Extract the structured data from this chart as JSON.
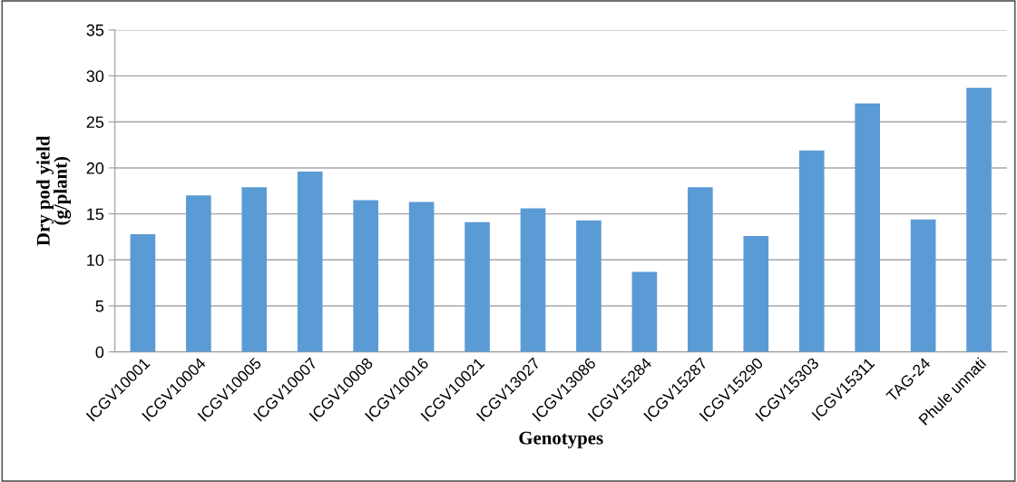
{
  "chart_data": {
    "type": "bar",
    "xlabel": "Genotypes",
    "ylabel": "Dry pod yield\n(g/plant)",
    "categories": [
      "ICGV10001",
      "ICGV10004",
      "ICGV10005",
      "ICGV10007",
      "ICGV10008",
      "ICGV10016",
      "ICGV10021",
      "ICGV13027",
      "ICGV13086",
      "ICGV15284",
      "ICGV15287",
      "ICGV15290",
      "ICGV15303",
      "ICGV15311",
      "TAG-24",
      "Phule unnati"
    ],
    "values": [
      12.8,
      17.0,
      17.9,
      19.6,
      16.5,
      16.3,
      14.1,
      15.6,
      14.3,
      8.7,
      17.9,
      12.6,
      21.9,
      27.0,
      14.4,
      28.7
    ],
    "color": "#5b9bd5",
    "ylim": [
      0,
      35
    ],
    "yticks": [
      0,
      5,
      10,
      15,
      20,
      25,
      30,
      35
    ],
    "grid": "y",
    "legend": false
  }
}
